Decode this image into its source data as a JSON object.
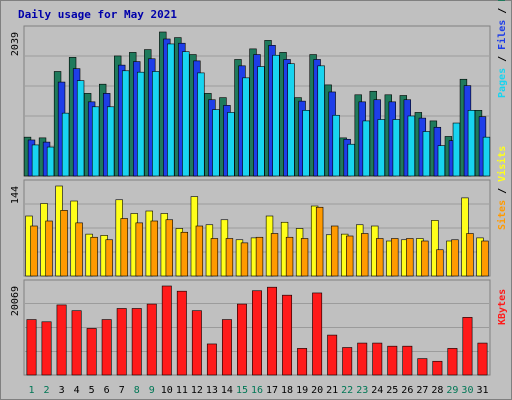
{
  "chart_data": {
    "type": "bar",
    "title": "Daily usage for May 2021",
    "categories": [
      "1",
      "2",
      "3",
      "4",
      "5",
      "6",
      "7",
      "8",
      "9",
      "10",
      "11",
      "12",
      "13",
      "14",
      "15",
      "16",
      "17",
      "18",
      "19",
      "20",
      "21",
      "22",
      "23",
      "24",
      "25",
      "26",
      "27",
      "28",
      "29",
      "30",
      "31"
    ],
    "weekend_days": [
      "1",
      "2",
      "8",
      "9",
      "15",
      "16",
      "22",
      "23",
      "29",
      "30"
    ],
    "panels": [
      {
        "id": "top",
        "max_label": "2039",
        "ylim": [
          0,
          2039
        ],
        "series": [
          {
            "name": "Hits",
            "color": "#1f7a5c",
            "values": [
              550,
              540,
              1480,
              1680,
              1170,
              1300,
              1700,
              1750,
              1790,
              2039,
              1960,
              1720,
              1170,
              1110,
              1650,
              1800,
              1920,
              1750,
              1110,
              1720,
              1290,
              540,
              1150,
              1200,
              1150,
              1140,
              900,
              780,
              560,
              1370,
              930
            ]
          },
          {
            "name": "Files",
            "color": "#1e3ee8",
            "values": [
              510,
              480,
              1330,
              1520,
              1050,
              1170,
              1570,
              1620,
              1660,
              1940,
              1880,
              1630,
              1080,
              1000,
              1560,
              1720,
              1850,
              1650,
              1060,
              1650,
              1190,
              520,
              1050,
              1080,
              1050,
              1080,
              820,
              690,
              500,
              1280,
              840
            ]
          },
          {
            "name": "Pages",
            "color": "#18d4f0",
            "values": [
              440,
              410,
              890,
              1350,
              980,
              980,
              1490,
              1470,
              1480,
              1870,
              1760,
              1460,
              940,
              900,
              1390,
              1550,
              1710,
              1590,
              930,
              1560,
              860,
              450,
              780,
              800,
              800,
              850,
              630,
              430,
              750,
              930,
              550
            ]
          }
        ]
      },
      {
        "id": "middle",
        "max_label": "144",
        "ylim": [
          0,
          144
        ],
        "series": [
          {
            "name": "Visits",
            "color": "#ffff1a",
            "values": [
              96,
              116,
              144,
              120,
              67,
              65,
              122,
              100,
              104,
              100,
              76,
              127,
              82,
              90,
              58,
              61,
              96,
              86,
              76,
              112,
              66,
              67,
              82,
              80,
              56,
              58,
              60,
              89,
              56,
              125,
              61
            ]
          },
          {
            "name": "Sites",
            "color": "#ff9a00",
            "values": [
              80,
              88,
              105,
              85,
              62,
              58,
              92,
              85,
              88,
              90,
              70,
              80,
              60,
              60,
              53,
              62,
              68,
              62,
              60,
              110,
              80,
              64,
              68,
              60,
              60,
              60,
              56,
              42,
              58,
              68,
              56
            ]
          }
        ]
      },
      {
        "id": "bottom",
        "max_label": "20069",
        "ylim": [
          0,
          20069
        ],
        "series": [
          {
            "name": "KBytes",
            "color": "#ff1a1a",
            "values": [
              12500,
              12000,
              15800,
              14500,
              10500,
              12500,
              15000,
              15000,
              16000,
              20069,
              18900,
              14500,
              7000,
              12500,
              16000,
              19000,
              19800,
              18000,
              6000,
              18500,
              9000,
              6200,
              7200,
              7200,
              6500,
              6500,
              3700,
              3100,
              6000,
              13000,
              7200
            ]
          }
        ]
      }
    ],
    "legend_right": [
      {
        "panel": "top",
        "items": [
          {
            "label": "Pages",
            "color": "#18d4f0"
          },
          {
            "label": "Files",
            "color": "#1e3ee8"
          },
          {
            "label": "Hits",
            "color": "#1f7a5c"
          }
        ]
      },
      {
        "panel": "middle",
        "items": [
          {
            "label": "Sites",
            "color": "#ff9a00"
          },
          {
            "label": "Visits",
            "color": "#ffff1a"
          }
        ]
      },
      {
        "panel": "bottom",
        "items": [
          {
            "label": "KBytes",
            "color": "#ff1a1a"
          }
        ]
      }
    ],
    "separator": " / ",
    "colors": {
      "background": "#c0c0c0",
      "plot_background": "#c0c0c0",
      "grid": "#777777",
      "title": "#0000aa",
      "axis_text": "#000000",
      "weekday_text": "#000000",
      "weekend_text": "#007755"
    }
  }
}
